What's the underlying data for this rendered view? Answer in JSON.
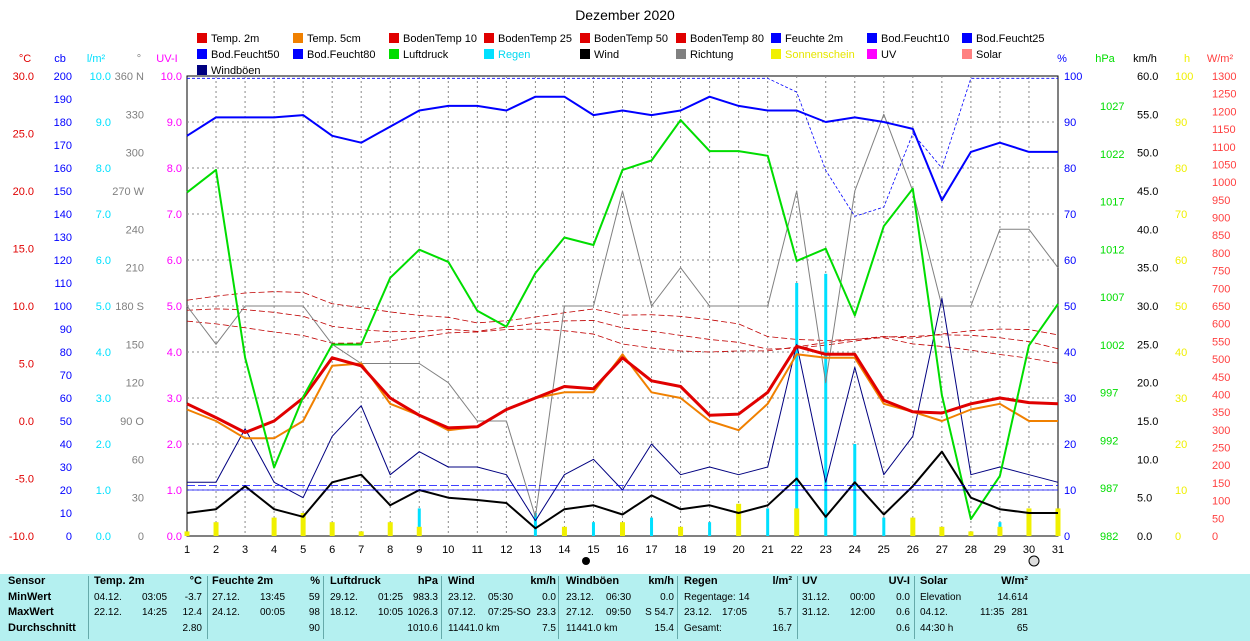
{
  "title": "Dezember 2020",
  "legend": [
    {
      "label": "Temp. 2m",
      "color": "#e00000"
    },
    {
      "label": "Temp. 5cm",
      "color": "#f08000"
    },
    {
      "label": "BodenTemp 10",
      "color": "#e00000"
    },
    {
      "label": "BodenTemp 25",
      "color": "#e00000"
    },
    {
      "label": "BodenTemp 50",
      "color": "#e00000"
    },
    {
      "label": "BodenTemp 80",
      "color": "#e00000"
    },
    {
      "label": "Feuchte 2m",
      "color": "#0000ff"
    },
    {
      "label": "Bod.Feucht10",
      "color": "#0000ff"
    },
    {
      "label": "Bod.Feucht25",
      "color": "#0000ff"
    },
    {
      "label": "Bod.Feucht50",
      "color": "#0000ff"
    },
    {
      "label": "Bod.Feucht80",
      "color": "#0000ff"
    },
    {
      "label": "Luftdruck",
      "color": "#00dd00"
    },
    {
      "label": "Regen",
      "color": "#00e0ff"
    },
    {
      "label": "Wind",
      "color": "#000000"
    },
    {
      "label": "Richtung",
      "color": "#808080"
    },
    {
      "label": "Sonnenschein",
      "color": "#f0f000"
    },
    {
      "label": "UV",
      "color": "#ff00ff"
    },
    {
      "label": "Solar",
      "color": "#ff8080"
    },
    {
      "label": "Windböen",
      "color": "#000080"
    }
  ],
  "axes": {
    "temp": {
      "unit": "°C",
      "ticks": [
        "30.0",
        "25.0",
        "20.0",
        "15.0",
        "10.0",
        "5.0",
        "0.0",
        "-5.0",
        "-10.0"
      ],
      "color": "#e00000"
    },
    "cb": {
      "unit": "cb",
      "ticks": [
        "200",
        "190",
        "180",
        "170",
        "160",
        "150",
        "140",
        "130",
        "120",
        "110",
        "100",
        "90",
        "80",
        "70",
        "60",
        "50",
        "40",
        "30",
        "20",
        "10",
        "0"
      ],
      "color": "#0000ff"
    },
    "rain": {
      "unit": "l/m²",
      "ticks": [
        "10.0",
        "9.0",
        "8.0",
        "7.0",
        "6.0",
        "5.0",
        "4.0",
        "3.0",
        "2.0",
        "1.0",
        "0.0"
      ],
      "color": "#00e0ff"
    },
    "dir": {
      "unit": "°",
      "ticks": [
        "360 N",
        "330",
        "300",
        "270 W",
        "240",
        "210",
        "180 S",
        "150",
        "120",
        "90 O",
        "60",
        "30",
        "0"
      ],
      "color": "#808080"
    },
    "uv": {
      "unit": "UV-I",
      "ticks": [
        "10.0",
        "9.0",
        "8.0",
        "7.0",
        "6.0",
        "5.0",
        "4.0",
        "3.0",
        "2.0",
        "1.0",
        "0.0"
      ],
      "color": "#ff00ff"
    },
    "hum": {
      "unit": "%",
      "ticks": [
        "100",
        "90",
        "80",
        "70",
        "60",
        "50",
        "40",
        "30",
        "20",
        "10",
        "0"
      ],
      "color": "#0000ff"
    },
    "pres": {
      "unit": "hPa",
      "ticks": [
        "1027",
        "1022",
        "1017",
        "1012",
        "1007",
        "1002",
        "997",
        "992",
        "987",
        "982"
      ],
      "color": "#00dd00"
    },
    "wind": {
      "unit": "km/h",
      "ticks": [
        "60.0",
        "55.0",
        "50.0",
        "45.0",
        "40.0",
        "35.0",
        "30.0",
        "25.0",
        "20.0",
        "15.0",
        "10.0",
        "5.0",
        "0.0"
      ],
      "color": "#000000"
    },
    "sun": {
      "unit": "h",
      "ticks": [
        "100",
        "90",
        "80",
        "70",
        "60",
        "50",
        "40",
        "30",
        "20",
        "10",
        "0"
      ],
      "color": "#f0f000"
    },
    "solar": {
      "unit": "W/m²",
      "ticks": [
        "1300",
        "1250",
        "1200",
        "1150",
        "1100",
        "1050",
        "1000",
        "950",
        "900",
        "850",
        "800",
        "750",
        "700",
        "650",
        "600",
        "550",
        "500",
        "450",
        "400",
        "350",
        "300",
        "250",
        "200",
        "150",
        "100",
        "50",
        "0"
      ],
      "color": "#ff4040"
    }
  },
  "chart_data": {
    "type": "line",
    "x": [
      1,
      2,
      3,
      4,
      5,
      6,
      7,
      8,
      9,
      10,
      11,
      12,
      13,
      14,
      15,
      16,
      17,
      18,
      19,
      20,
      21,
      22,
      23,
      24,
      25,
      26,
      27,
      28,
      29,
      30,
      31
    ],
    "series": [
      {
        "name": "Temp. 2m",
        "axis": "temp",
        "values": [
          1.5,
          0.3,
          -1.0,
          0.0,
          2.0,
          5.5,
          4.8,
          2.0,
          0.5,
          -0.6,
          -0.5,
          1.0,
          2.0,
          3.0,
          2.8,
          5.5,
          3.5,
          3.0,
          0.5,
          0.6,
          2.5,
          6.5,
          5.8,
          5.8,
          1.8,
          0.8,
          0.7,
          1.5,
          2.0,
          1.6,
          1.5
        ],
        "color": "#e00000"
      },
      {
        "name": "Temp. 5cm",
        "axis": "temp",
        "values": [
          1.0,
          0.0,
          -1.5,
          -1.5,
          0.0,
          4.8,
          5.0,
          1.5,
          0.5,
          -0.8,
          -0.5,
          1.0,
          2.0,
          2.5,
          2.5,
          5.8,
          2.5,
          2.0,
          0.0,
          -0.8,
          1.5,
          5.8,
          5.5,
          5.5,
          1.5,
          0.8,
          0.0,
          1.0,
          1.5,
          0.0,
          0.0
        ],
        "color": "#f08000"
      },
      {
        "name": "Feuchte 2m",
        "axis": "hum",
        "values": [
          87,
          91,
          91,
          91,
          91.5,
          87,
          85.5,
          89,
          92.5,
          93.5,
          93.5,
          92.5,
          95.5,
          95.5,
          91.5,
          92.5,
          91.5,
          92.5,
          95.5,
          93.5,
          92.5,
          92.5,
          90,
          91,
          90,
          88.5,
          73,
          83.5,
          85.5,
          83.5,
          83.5
        ],
        "color": "#0000ff"
      },
      {
        "name": "Luftdruck",
        "axis": "pres",
        "values": [
          1018.6,
          1021.0,
          1001.0,
          989.3,
          996.8,
          1002.4,
          1002.4,
          1009.5,
          1012.5,
          1011.2,
          1006.0,
          1004.3,
          1010.0,
          1013.8,
          1013.0,
          1021.0,
          1022.0,
          1026.3,
          1023.0,
          1023.0,
          1022.5,
          1011.3,
          1012.6,
          1005.5,
          1015.0,
          1019.0,
          997.0,
          983.8,
          988.4,
          1002.3,
          1006.7
        ],
        "color": "#00dd00"
      },
      {
        "name": "Wind",
        "axis": "wind",
        "values": [
          3.0,
          3.5,
          6.5,
          3.5,
          2.5,
          7.0,
          8.0,
          4.0,
          6.0,
          5.0,
          4.7,
          4.3,
          1.0,
          3.5,
          4.0,
          2.8,
          5.3,
          3.5,
          4.0,
          3.0,
          4.0,
          7.5,
          2.5,
          7.0,
          2.8,
          6.5,
          11.0,
          5.0,
          3.5,
          3.0,
          3.0
        ],
        "color": "#000000"
      },
      {
        "name": "Windböen",
        "axis": "wind",
        "values": [
          7,
          7,
          14,
          7,
          5,
          13,
          17,
          8,
          11,
          9,
          9,
          8,
          2,
          8,
          10,
          6,
          12,
          8,
          9,
          8,
          9,
          25,
          7,
          22,
          8,
          13,
          31,
          8,
          9,
          8,
          7
        ],
        "color": "#000080"
      },
      {
        "name": "Richtung",
        "axis": "dir",
        "values": [
          180,
          150,
          180,
          180,
          180,
          150,
          135,
          135,
          135,
          120,
          90,
          90,
          15,
          180,
          180,
          270,
          180,
          210,
          180,
          180,
          180,
          270,
          120,
          270,
          330,
          270,
          180,
          180,
          240,
          240,
          210
        ],
        "color": "#808080"
      },
      {
        "name": "Regen",
        "axis": "rain",
        "type": "bar",
        "values": [
          0,
          0,
          0,
          0,
          0,
          0,
          0,
          0,
          0.6,
          0,
          0,
          0,
          0.5,
          0,
          0.3,
          0,
          0.4,
          0,
          0.3,
          0,
          0.6,
          5.5,
          5.7,
          2.0,
          0.4,
          0,
          0,
          0,
          0.3,
          0,
          0
        ],
        "color": "#00e0ff"
      },
      {
        "name": "Sonnenschein",
        "axis": "sun",
        "type": "bar",
        "values": [
          1,
          3,
          0,
          4,
          5,
          3,
          1,
          3,
          2,
          0,
          0,
          0,
          0,
          2,
          0,
          3,
          0,
          2,
          0,
          7,
          0,
          6,
          0,
          0,
          0,
          4,
          2,
          1,
          2,
          6,
          6
        ],
        "color": "#f0f000"
      }
    ]
  },
  "summary": {
    "sensor": {
      "title": "Sensor",
      "rows": [
        "MinWert",
        "MaxWert",
        "Durchschnitt"
      ]
    },
    "temp": {
      "title": "Temp. 2m",
      "unit": "°C",
      "rows": [
        [
          "04.12.",
          "03:05",
          "-3.7"
        ],
        [
          "22.12.",
          "14:25",
          "12.4"
        ],
        [
          "",
          "",
          "2.80"
        ]
      ]
    },
    "hum": {
      "title": "Feuchte 2m",
      "unit": "%",
      "rows": [
        [
          "27.12.",
          "13:45",
          "59"
        ],
        [
          "24.12.",
          "00:05",
          "98"
        ],
        [
          "",
          "",
          "90"
        ]
      ]
    },
    "pres": {
      "title": "Luftdruck",
      "unit": "hPa",
      "rows": [
        [
          "29.12.",
          "01:25",
          "983.3"
        ],
        [
          "18.12.",
          "10:05",
          "1026.3"
        ],
        [
          "",
          "",
          "1010.6"
        ]
      ]
    },
    "wind": {
      "title": "Wind",
      "unit": "km/h",
      "rows": [
        [
          "23.12.",
          "05:30",
          "0.0"
        ],
        [
          "07.12.",
          "07:25-SO",
          "23.3"
        ],
        [
          "11441.0 km",
          "",
          "7.5"
        ]
      ]
    },
    "gust": {
      "title": "Windböen",
      "unit": "km/h",
      "rows": [
        [
          "23.12.",
          "06:30",
          "0.0"
        ],
        [
          "27.12.",
          "09:50",
          "S 54.7"
        ],
        [
          "11441.0 km",
          "",
          "15.4"
        ]
      ]
    },
    "rain": {
      "title": "Regen",
      "unit": "l/m²",
      "rows": [
        [
          "Regentage: 14",
          "",
          ""
        ],
        [
          "23.12.",
          "17:05",
          "5.7"
        ],
        [
          "Gesamt:",
          "",
          "16.7"
        ]
      ]
    },
    "uv": {
      "title": "UV",
      "unit": "UV-I",
      "rows": [
        [
          "31.12.",
          "00:00",
          "0.0"
        ],
        [
          "31.12.",
          "12:00",
          "0.6"
        ],
        [
          "",
          "",
          "0.6"
        ]
      ]
    },
    "solar": {
      "title": "Solar",
      "unit": "W/m²",
      "rows": [
        [
          "Elevation",
          "",
          "14.614"
        ],
        [
          "04.12.",
          "11:35",
          "281"
        ],
        [
          "44:30 h",
          "",
          "65"
        ]
      ]
    }
  }
}
